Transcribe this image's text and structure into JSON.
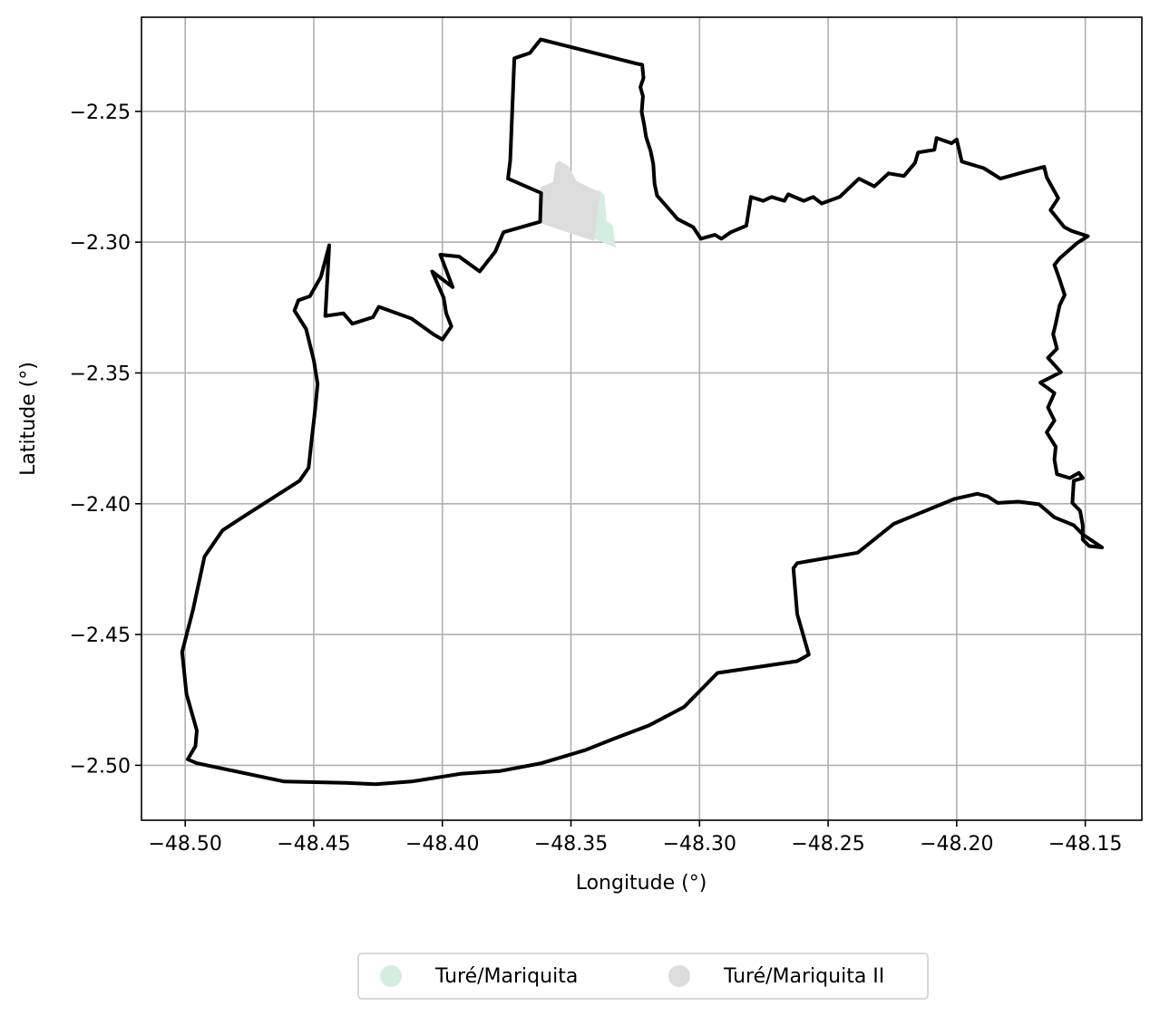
{
  "chart_data": {
    "type": "map",
    "xlabel": "Longitude (°)",
    "ylabel": "Latitude (°)",
    "xlim": [
      -48.517,
      -48.128
    ],
    "ylim": [
      -2.521,
      -2.214
    ],
    "grid": true,
    "x_ticks": [
      -48.5,
      -48.45,
      -48.4,
      -48.35,
      -48.3,
      -48.25,
      -48.2,
      -48.15
    ],
    "x_tick_labels": [
      "−48.50",
      "−48.45",
      "−48.40",
      "−48.35",
      "−48.30",
      "−48.25",
      "−48.20",
      "−48.15"
    ],
    "y_ticks": [
      -2.25,
      -2.3,
      -2.35,
      -2.4,
      -2.45,
      -2.5
    ],
    "y_tick_labels": [
      "−2.25",
      "−2.30",
      "−2.35",
      "−2.40",
      "−2.45",
      "−2.50"
    ],
    "legend_placement": "bottom-center",
    "series": [
      {
        "name": "Turé/Mariquita",
        "color": "#d3ede0",
        "polygon": [
          [
            -48.3395,
            -2.2797
          ],
          [
            -48.337,
            -2.2818
          ],
          [
            -48.3362,
            -2.292
          ],
          [
            -48.3338,
            -2.2935
          ],
          [
            -48.3325,
            -2.3022
          ],
          [
            -48.3415,
            -2.2985
          ],
          [
            -48.341,
            -2.287
          ]
        ]
      },
      {
        "name": "Turé/Mariquita II",
        "color": "#dcdcdc",
        "polygon": [
          [
            -48.3545,
            -2.2688
          ],
          [
            -48.351,
            -2.271
          ],
          [
            -48.348,
            -2.2765
          ],
          [
            -48.343,
            -2.279
          ],
          [
            -48.3385,
            -2.281
          ],
          [
            -48.3395,
            -2.2875
          ],
          [
            -48.341,
            -2.2995
          ],
          [
            -48.3475,
            -2.2975
          ],
          [
            -48.3625,
            -2.2925
          ],
          [
            -48.362,
            -2.279
          ],
          [
            -48.357,
            -2.277
          ],
          [
            -48.356,
            -2.27
          ]
        ]
      }
    ],
    "boundary": [
      [
        -48.3618,
        -2.2225
      ],
      [
        -48.3247,
        -2.2317
      ],
      [
        -48.3223,
        -2.2322
      ],
      [
        -48.3218,
        -2.2372
      ],
      [
        -48.323,
        -2.2407
      ],
      [
        -48.322,
        -2.2442
      ],
      [
        -48.3225,
        -2.2502
      ],
      [
        -48.3215,
        -2.2552
      ],
      [
        -48.3208,
        -2.2597
      ],
      [
        -48.319,
        -2.2652
      ],
      [
        -48.318,
        -2.2702
      ],
      [
        -48.3175,
        -2.2777
      ],
      [
        -48.3165,
        -2.2822
      ],
      [
        -48.3125,
        -2.2867
      ],
      [
        -48.3085,
        -2.2912
      ],
      [
        -48.3025,
        -2.2942
      ],
      [
        -48.2995,
        -2.2987
      ],
      [
        -48.294,
        -2.2972
      ],
      [
        -48.2915,
        -2.2987
      ],
      [
        -48.2878,
        -2.2962
      ],
      [
        -48.2818,
        -2.2937
      ],
      [
        -48.28,
        -2.2827
      ],
      [
        -48.2752,
        -2.2842
      ],
      [
        -48.272,
        -2.2827
      ],
      [
        -48.267,
        -2.2842
      ],
      [
        -48.2655,
        -2.2817
      ],
      [
        -48.2595,
        -2.2842
      ],
      [
        -48.2558,
        -2.2827
      ],
      [
        -48.2525,
        -2.2852
      ],
      [
        -48.2455,
        -2.2827
      ],
      [
        -48.238,
        -2.2757
      ],
      [
        -48.232,
        -2.2787
      ],
      [
        -48.2265,
        -2.2737
      ],
      [
        -48.2205,
        -2.2747
      ],
      [
        -48.2162,
        -2.2697
      ],
      [
        -48.215,
        -2.2657
      ],
      [
        -48.2087,
        -2.2647
      ],
      [
        -48.2078,
        -2.2602
      ],
      [
        -48.202,
        -2.2622
      ],
      [
        -48.2,
        -2.2607
      ],
      [
        -48.198,
        -2.2692
      ],
      [
        -48.1895,
        -2.2717
      ],
      [
        -48.183,
        -2.2757
      ],
      [
        -48.174,
        -2.2732
      ],
      [
        -48.166,
        -2.2712
      ],
      [
        -48.165,
        -2.2752
      ],
      [
        -48.1605,
        -2.2832
      ],
      [
        -48.1635,
        -2.2877
      ],
      [
        -48.1582,
        -2.2942
      ],
      [
        -48.1553,
        -2.2957
      ],
      [
        -48.149,
        -2.2977
      ],
      [
        -48.153,
        -2.3002
      ],
      [
        -48.16,
        -2.3062
      ],
      [
        -48.162,
        -2.3087
      ],
      [
        -48.16,
        -2.3142
      ],
      [
        -48.158,
        -2.3202
      ],
      [
        -48.16,
        -2.3242
      ],
      [
        -48.1615,
        -2.3312
      ],
      [
        -48.1625,
        -2.3352
      ],
      [
        -48.161,
        -2.3407
      ],
      [
        -48.1645,
        -2.3442
      ],
      [
        -48.1595,
        -2.3497
      ],
      [
        -48.1675,
        -2.3537
      ],
      [
        -48.162,
        -2.3577
      ],
      [
        -48.1645,
        -2.3632
      ],
      [
        -48.162,
        -2.3682
      ],
      [
        -48.165,
        -2.3727
      ],
      [
        -48.1615,
        -2.3782
      ],
      [
        -48.162,
        -2.3832
      ],
      [
        -48.161,
        -2.3887
      ],
      [
        -48.156,
        -2.3902
      ],
      [
        -48.1525,
        -2.3882
      ],
      [
        -48.151,
        -2.3902
      ],
      [
        -48.1545,
        -2.3912
      ],
      [
        -48.155,
        -2.3997
      ],
      [
        -48.152,
        -2.4027
      ],
      [
        -48.151,
        -2.4082
      ],
      [
        -48.151,
        -2.4137
      ],
      [
        -48.1485,
        -2.4162
      ],
      [
        -48.1435,
        -2.4167
      ],
      [
        -48.151,
        -2.4117
      ],
      [
        -48.1545,
        -2.4082
      ],
      [
        -48.162,
        -2.4052
      ],
      [
        -48.168,
        -2.4002
      ],
      [
        -48.176,
        -2.3992
      ],
      [
        -48.184,
        -2.3997
      ],
      [
        -48.188,
        -2.3972
      ],
      [
        -48.192,
        -2.3962
      ],
      [
        -48.201,
        -2.3982
      ],
      [
        -48.2245,
        -2.4077
      ],
      [
        -48.2385,
        -2.4187
      ],
      [
        -48.262,
        -2.4227
      ],
      [
        -48.2635,
        -2.4247
      ],
      [
        -48.262,
        -2.4422
      ],
      [
        -48.2575,
        -2.4577
      ],
      [
        -48.262,
        -2.4602
      ],
      [
        -48.293,
        -2.4647
      ],
      [
        -48.306,
        -2.4777
      ],
      [
        -48.3195,
        -2.4847
      ],
      [
        -48.333,
        -2.4897
      ],
      [
        -48.3445,
        -2.4942
      ],
      [
        -48.3615,
        -2.4992
      ],
      [
        -48.3775,
        -2.5022
      ],
      [
        -48.3925,
        -2.5032
      ],
      [
        -48.412,
        -2.5062
      ],
      [
        -48.426,
        -2.5072
      ],
      [
        -48.438,
        -2.5067
      ],
      [
        -48.4615,
        -2.5062
      ],
      [
        -48.4955,
        -2.4992
      ],
      [
        -48.499,
        -2.4977
      ],
      [
        -48.496,
        -2.4927
      ],
      [
        -48.4955,
        -2.4867
      ],
      [
        -48.4995,
        -2.4727
      ],
      [
        -48.5012,
        -2.4567
      ],
      [
        -48.497,
        -2.4407
      ],
      [
        -48.4925,
        -2.4202
      ],
      [
        -48.4855,
        -2.4102
      ],
      [
        -48.477,
        -2.4047
      ],
      [
        -48.4555,
        -2.3912
      ],
      [
        -48.452,
        -2.3862
      ],
      [
        -48.451,
        -2.3772
      ],
      [
        -48.4495,
        -2.3642
      ],
      [
        -48.4485,
        -2.3542
      ],
      [
        -48.45,
        -2.3452
      ],
      [
        -48.453,
        -2.3332
      ],
      [
        -48.4575,
        -2.3262
      ],
      [
        -48.456,
        -2.3222
      ],
      [
        -48.4515,
        -2.3207
      ],
      [
        -48.4472,
        -2.3132
      ],
      [
        -48.444,
        -2.3012
      ],
      [
        -48.4455,
        -2.3282
      ],
      [
        -48.4385,
        -2.3272
      ],
      [
        -48.435,
        -2.3312
      ],
      [
        -48.427,
        -2.3287
      ],
      [
        -48.4247,
        -2.3247
      ],
      [
        -48.412,
        -2.3292
      ],
      [
        -48.4035,
        -2.3352
      ],
      [
        -48.4,
        -2.3372
      ],
      [
        -48.3965,
        -2.3322
      ],
      [
        -48.3985,
        -2.3272
      ],
      [
        -48.3995,
        -2.3212
      ],
      [
        -48.404,
        -2.3112
      ],
      [
        -48.396,
        -2.3172
      ],
      [
        -48.4008,
        -2.3048
      ],
      [
        -48.3935,
        -2.3055
      ],
      [
        -48.3855,
        -2.3112
      ],
      [
        -48.3795,
        -2.3037
      ],
      [
        -48.3762,
        -2.2962
      ],
      [
        -48.362,
        -2.2922
      ],
      [
        -48.3616,
        -2.2812
      ],
      [
        -48.3745,
        -2.2757
      ],
      [
        -48.3736,
        -2.2687
      ],
      [
        -48.372,
        -2.2297
      ],
      [
        -48.366,
        -2.2277
      ],
      [
        -48.3618,
        -2.2225
      ]
    ]
  }
}
